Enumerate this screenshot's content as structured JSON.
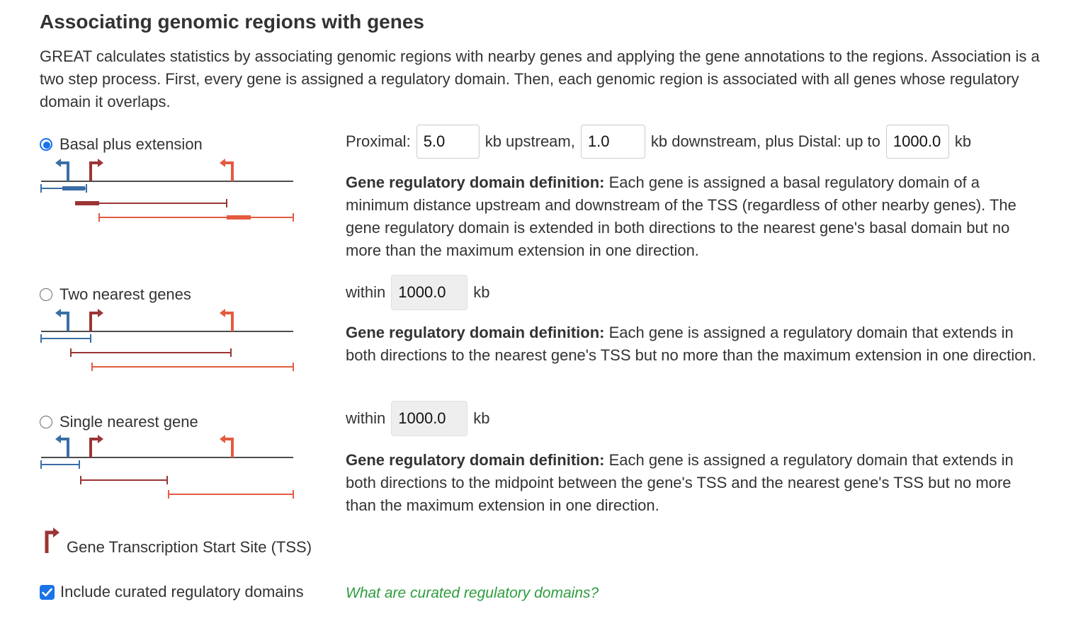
{
  "heading": "Associating genomic regions with genes",
  "intro": "GREAT calculates statistics by associating genomic regions with nearby genes and applying the gene annotations to the regions. Association is a two step process. First, every gene is assigned a regulatory domain. Then, each genomic region is associated with all genes whose regulatory domain it overlaps.",
  "options": [
    {
      "label": "Basal plus extension",
      "selected": true,
      "params": {
        "proximal_label": "Proximal:",
        "upstream_value": "5.0",
        "upstream_suffix": "kb upstream,",
        "downstream_value": "1.0",
        "downstream_suffix": "kb downstream, plus Distal: up to",
        "distal_value": "1000.0",
        "distal_suffix": "kb"
      },
      "definition_title": "Gene regulatory domain definition:",
      "definition_text": " Each gene is assigned a basal regulatory domain of a minimum distance upstream and downstream of the TSS (regardless of other nearby genes). The gene regulatory domain is extended in both directions to the nearest gene's basal domain but no more than the maximum extension in one direction."
    },
    {
      "label": "Two nearest genes",
      "selected": false,
      "params": {
        "within_label": "within",
        "value": "1000.0",
        "suffix": "kb"
      },
      "definition_title": "Gene regulatory domain definition:",
      "definition_text": " Each gene is assigned a regulatory domain that extends in both directions to the nearest gene's TSS but no more than the maximum extension in one direction."
    },
    {
      "label": "Single nearest gene",
      "selected": false,
      "params": {
        "within_label": "within",
        "value": "1000.0",
        "suffix": "kb"
      },
      "definition_title": "Gene regulatory domain definition:",
      "definition_text": " Each gene is assigned a regulatory domain that extends in both directions to the midpoint between the gene's TSS and the nearest gene's TSS but no more than the maximum extension in one direction."
    }
  ],
  "legend": {
    "label": "Gene Transcription Start Site (TSS)",
    "icon": "tss-arrow-icon"
  },
  "curated": {
    "label": "Include curated regulatory domains",
    "checked": true,
    "link": "What are curated regulatory domains?"
  },
  "colors": {
    "gene_blue": "#3a6ea5",
    "gene_dark_red": "#9b3535",
    "gene_orange": "#e45b3f",
    "accent": "#1a73e8",
    "link_green": "#2e9d3d"
  }
}
